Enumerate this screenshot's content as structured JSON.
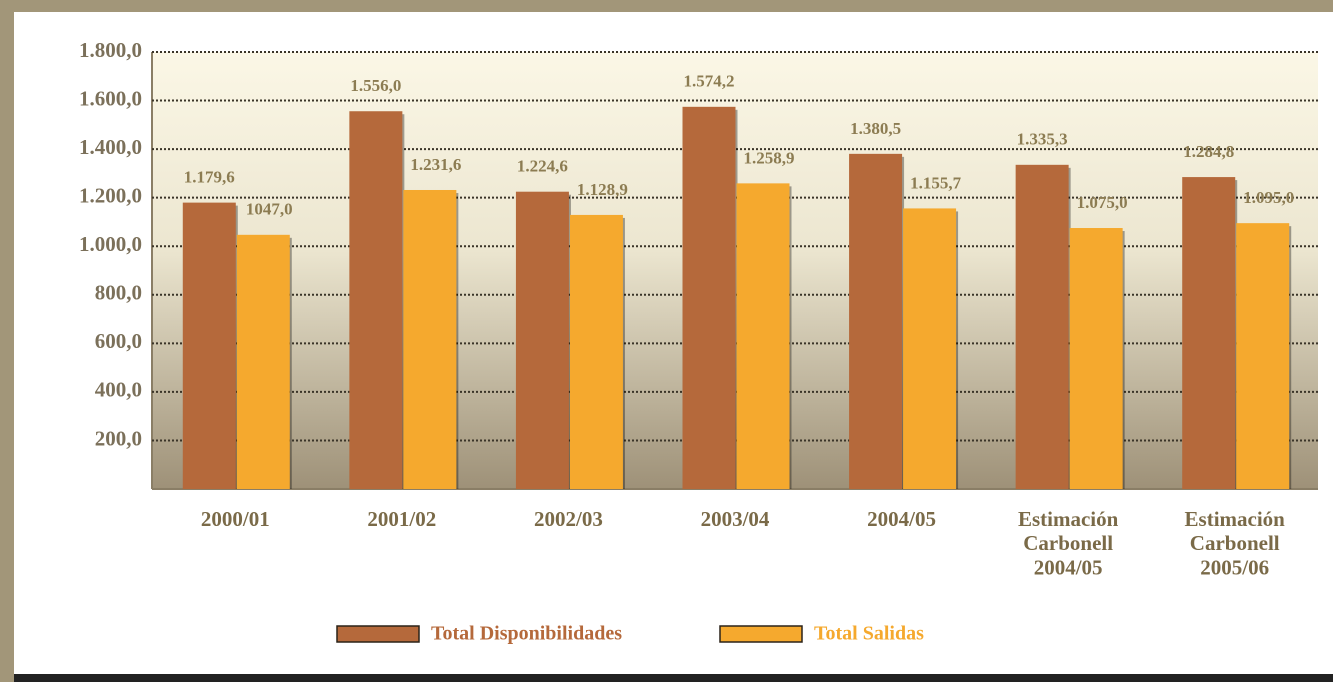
{
  "chart_data": {
    "type": "bar",
    "categories": [
      "2000/01",
      "2001/02",
      "2002/03",
      "2003/04",
      "2004/05",
      "Estimación\nCarbonell\n2004/05",
      "Estimación\nCarbonell\n2005/06"
    ],
    "series": [
      {
        "name": "Total Disponibilidades",
        "color": "#b5693b",
        "values": [
          1179.6,
          1556.0,
          1224.6,
          1574.2,
          1380.5,
          1335.3,
          1284.8
        ],
        "value_labels": [
          "1.179,6",
          "1.556,0",
          "1.224,6",
          "1.574,2",
          "1.380,5",
          "1.335,3",
          "1.284,8"
        ]
      },
      {
        "name": "Total Salidas",
        "color": "#f5a92e",
        "values": [
          1047.0,
          1231.6,
          1128.9,
          1258.9,
          1155.7,
          1075.0,
          1095.0
        ],
        "value_labels": [
          "1047,0",
          "1.231,6",
          "1.128,9",
          "1.258,9",
          "1.155,7",
          "1.075,0",
          "1.095,0"
        ]
      }
    ],
    "ylim": [
      0,
      1800
    ],
    "yticks": [
      {
        "value": 200,
        "label": "200,0"
      },
      {
        "value": 400,
        "label": "400,0"
      },
      {
        "value": 600,
        "label": "600,0"
      },
      {
        "value": 800,
        "label": "800,0"
      },
      {
        "value": 1000,
        "label": "1.000,0"
      },
      {
        "value": 1200,
        "label": "1.200,0"
      },
      {
        "value": 1400,
        "label": "1.400,0"
      },
      {
        "value": 1600,
        "label": "1.600,0"
      },
      {
        "value": 1800,
        "label": "1.800,0"
      }
    ],
    "grid": true,
    "legend": "bottom"
  }
}
